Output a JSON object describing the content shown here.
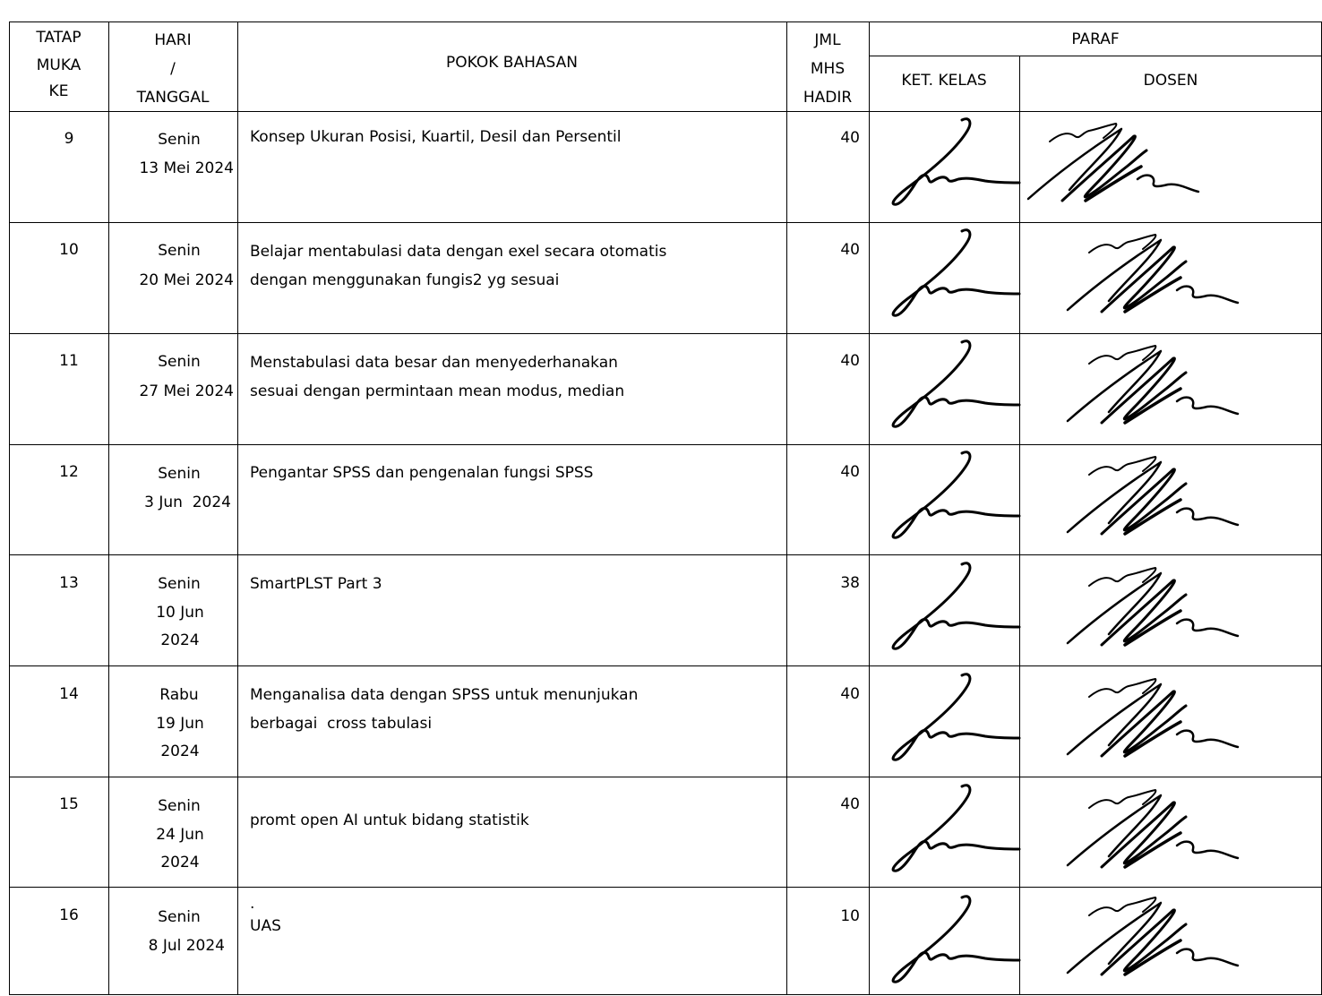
{
  "headers": {
    "tatap_muka": [
      "TATAP",
      "MUKA",
      "KE"
    ],
    "hari_tanggal": [
      "HARI",
      "/",
      "TANGGAL"
    ],
    "pokok_bahasan": "POKOK BAHASAN",
    "jml_mhs_hadir": [
      "JML",
      "MHS",
      "HADIR"
    ],
    "paraf": "PARAF",
    "ket_kelas": "KET. KELAS",
    "dosen": "DOSEN"
  },
  "rows": [
    {
      "tatap_muka": "9",
      "hari": "Senin",
      "tanggal": [
        "13 Mei 2024"
      ],
      "pokok_bahasan": [
        "Konsep Ukuran Posisi, Kuartil, Desil dan Persentil"
      ],
      "jml": "40"
    },
    {
      "tatap_muka": "10",
      "hari": "Senin",
      "tanggal": [
        "20 Mei 2024"
      ],
      "pokok_bahasan": [
        "Belajar mentabulasi data dengan exel secara otomatis",
        "dengan menggunakan fungis2 yg sesuai"
      ],
      "jml": "40"
    },
    {
      "tatap_muka": "11",
      "hari": "Senin",
      "tanggal": [
        "27 Mei 2024"
      ],
      "pokok_bahasan": [
        "Menstabulasi data besar dan menyederhanakan",
        "sesuai dengan permintaan mean modus, median"
      ],
      "jml": "40"
    },
    {
      "tatap_muka": "12",
      "hari": "Senin",
      "tanggal": [
        "3 Jun  2024"
      ],
      "pokok_bahasan": [
        "Pengantar SPSS dan pengenalan fungsi SPSS"
      ],
      "jml": "40"
    },
    {
      "tatap_muka": "13",
      "hari": "Senin",
      "tanggal": [
        "10 Jun",
        "2024"
      ],
      "pokok_bahasan": [
        "SmartPLST Part 3"
      ],
      "jml": "38"
    },
    {
      "tatap_muka": "14",
      "hari": "Rabu",
      "tanggal": [
        "19 Jun",
        "2024"
      ],
      "pokok_bahasan": [
        "Menganalisa data dengan SPSS untuk menunjukan",
        "berbagai  cross tabulasi"
      ],
      "jml": "40"
    },
    {
      "tatap_muka": "15",
      "hari": "Senin",
      "tanggal": [
        "24 Jun",
        "2024"
      ],
      "pokok_bahasan": [
        "promt open AI untuk bidang statistik"
      ],
      "jml": "40"
    },
    {
      "tatap_muka": "16",
      "hari": "Senin",
      "tanggal": [
        "8 Jul 2024"
      ],
      "pokok_bahasan": [
        ".",
        "UAS"
      ],
      "jml": "10"
    }
  ]
}
